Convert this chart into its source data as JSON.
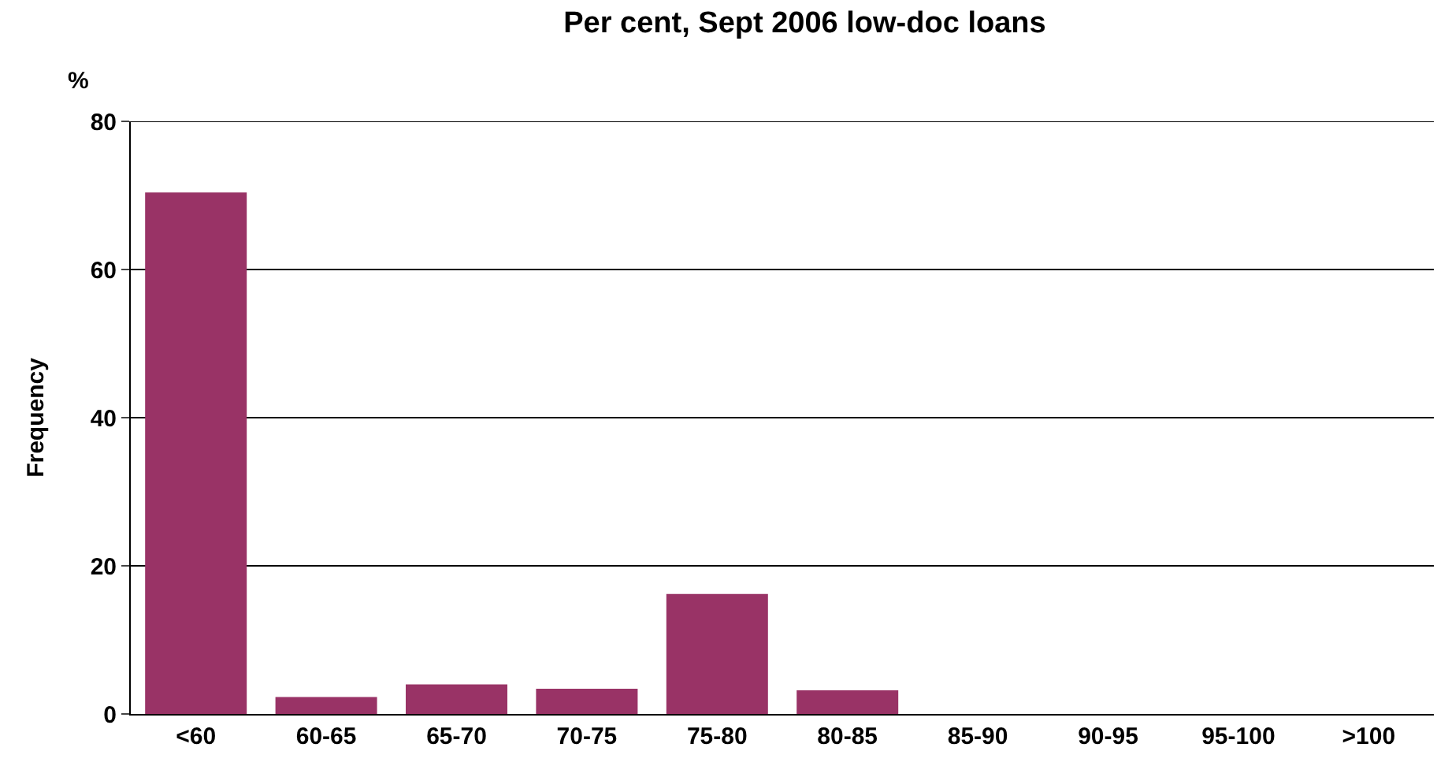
{
  "chart_data": {
    "type": "bar",
    "title": "Per cent, Sept 2006 low-doc loans",
    "ylabel": "Frequency",
    "annotations": [
      "%"
    ],
    "categories": [
      "<60",
      "60-65",
      "65-70",
      "70-75",
      "75-80",
      "80-85",
      "85-90",
      "90-95",
      "95-100",
      ">100"
    ],
    "values": [
      70.4,
      2.3,
      4.0,
      3.4,
      16.2,
      3.2,
      0,
      0,
      0,
      0
    ],
    "color": "#993366",
    "ylim": [
      0,
      80
    ],
    "yticks": [
      0,
      20,
      40,
      60,
      80
    ],
    "grid": "y"
  }
}
